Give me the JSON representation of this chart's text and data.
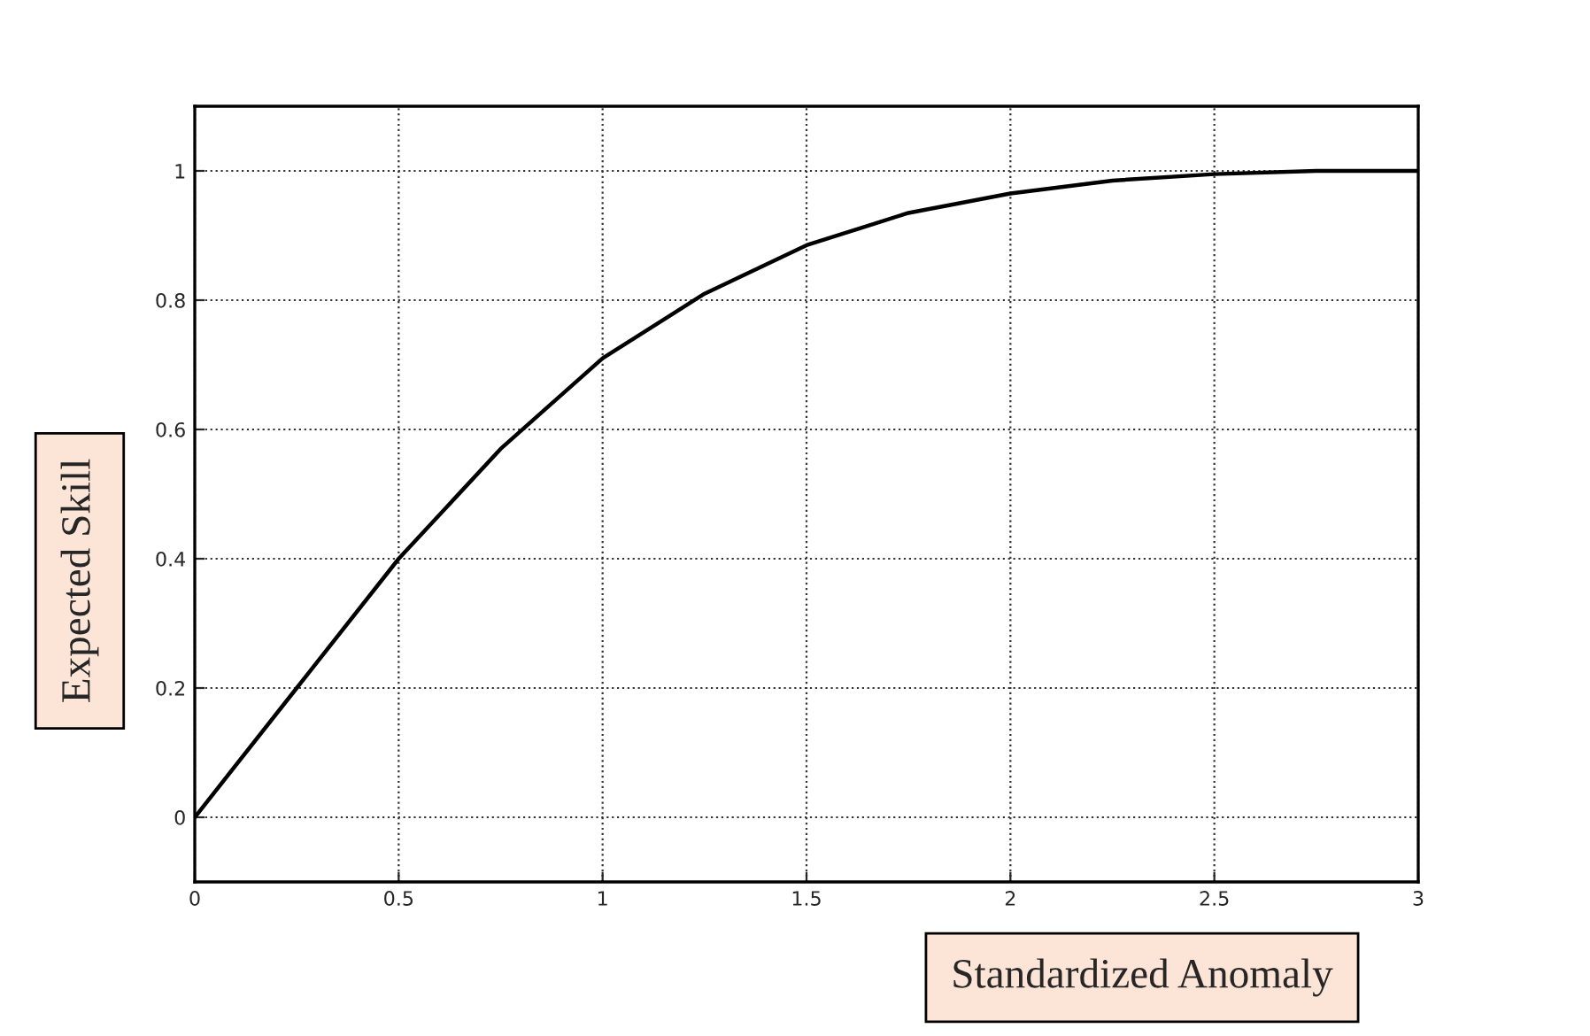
{
  "chart_data": {
    "type": "line",
    "xlabel": "Standardized Anomaly",
    "ylabel": "Expected Skill",
    "x": [
      0,
      0.25,
      0.5,
      0.75,
      1,
      1.25,
      1.5,
      1.75,
      2,
      2.25,
      2.5,
      2.75,
      3
    ],
    "series": [
      {
        "color": "#000000",
        "values": [
          0,
          0.2,
          0.4,
          0.57,
          0.71,
          0.81,
          0.885,
          0.935,
          0.965,
          0.985,
          0.995,
          1.0,
          1.0
        ]
      }
    ],
    "xlim": [
      0,
      3
    ],
    "xticks": [
      0,
      0.5,
      1,
      1.5,
      2,
      2.5,
      3
    ],
    "ylim": [
      -0.1,
      1.1
    ],
    "yticks": [
      0,
      0.2,
      0.4,
      0.6,
      0.8,
      1
    ],
    "grid": true,
    "marker": "none",
    "line_style": "solid"
  }
}
